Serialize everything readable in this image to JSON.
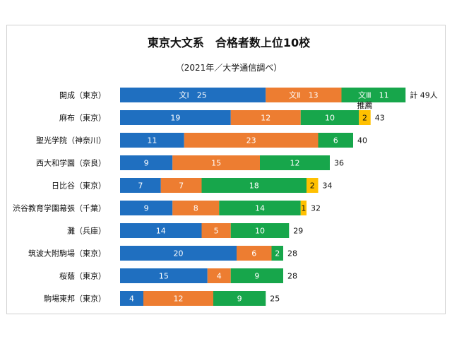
{
  "chart_data": {
    "type": "bar",
    "orientation": "horizontal",
    "stacked": true,
    "title": "東京大文系　合格者数上位10校",
    "subtitle": "（2021年／大学通信調べ）",
    "categories": [
      "開成（東京）",
      "麻布（東京）",
      "聖光学院（神奈川）",
      "西大和学園（奈良）",
      "日比谷（東京）",
      "渋谷教育学園幕張（千葉）",
      "灘（兵庫）",
      "筑波大附駒場（東京）",
      "桜蔭（東京）",
      "駒場東邦（東京）"
    ],
    "series": [
      {
        "name": "文Ⅰ",
        "color": "#1f6fc0",
        "values": [
          25,
          19,
          11,
          9,
          7,
          9,
          14,
          20,
          15,
          4
        ]
      },
      {
        "name": "文Ⅱ",
        "color": "#ed7d31",
        "values": [
          13,
          12,
          23,
          15,
          7,
          8,
          5,
          6,
          4,
          12
        ]
      },
      {
        "name": "文Ⅲ",
        "color": "#17a64b",
        "values": [
          11,
          10,
          6,
          12,
          18,
          14,
          10,
          2,
          9,
          9
        ]
      },
      {
        "name": "推薦",
        "color": "#ffc000",
        "values": [
          0,
          2,
          0,
          0,
          2,
          1,
          0,
          0,
          0,
          0
        ]
      }
    ],
    "totals": [
      49,
      43,
      40,
      36,
      34,
      32,
      29,
      28,
      28,
      25
    ],
    "first_row_labels": [
      "文Ⅰ",
      "文Ⅱ",
      "文Ⅲ"
    ],
    "first_total_prefix": "計",
    "first_total_suffix": "人",
    "recommend_label": "推薦",
    "xlim": [
      0,
      52
    ]
  }
}
